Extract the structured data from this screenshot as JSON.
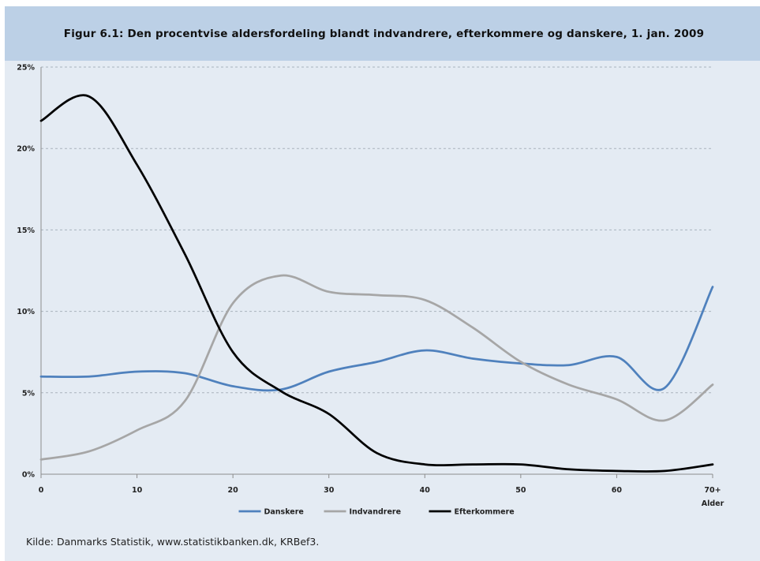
{
  "title": "Figur 6.1: Den procentvise aldersfordeling blandt indvandrere, efterkommere og danskere, 1. jan. 2009",
  "source": "Kilde: Danmarks Statistik, www.statistikbanken.dk, KRBef3.",
  "chart_data": {
    "type": "line",
    "title": "Figur 6.1: Den procentvise aldersfordeling blandt indvandrere, efterkommere og danskere, 1. jan. 2009",
    "xlabel": "Alder",
    "ylabel": "",
    "xlim": [
      0,
      70
    ],
    "ylim": [
      0,
      25
    ],
    "x_ticks": [
      "0",
      "10",
      "20",
      "30",
      "40",
      "50",
      "60",
      "70+"
    ],
    "y_ticks": [
      "0%",
      "5%",
      "10%",
      "15%",
      "20%",
      "25%"
    ],
    "grid": "horizontal dashed",
    "legend_position": "bottom",
    "x": [
      0,
      5,
      10,
      15,
      20,
      25,
      30,
      35,
      40,
      45,
      50,
      55,
      60,
      65,
      70
    ],
    "series": [
      {
        "name": "Danskere",
        "color": "#4f81bd",
        "values": [
          6.0,
          6.0,
          6.3,
          6.2,
          5.4,
          5.2,
          6.3,
          6.9,
          7.6,
          7.1,
          6.8,
          6.7,
          7.2,
          5.3,
          11.5
        ]
      },
      {
        "name": "Indvandrere",
        "color": "#a6a6a6",
        "values": [
          0.9,
          1.4,
          2.7,
          4.5,
          10.5,
          12.2,
          11.2,
          11.0,
          10.7,
          9.0,
          6.9,
          5.5,
          4.6,
          3.3,
          5.5
        ]
      },
      {
        "name": "Efterkommere",
        "color": "#000000",
        "values": [
          21.7,
          23.2,
          19.0,
          13.5,
          7.5,
          5.1,
          3.7,
          1.3,
          0.6,
          0.6,
          0.6,
          0.3,
          0.2,
          0.2,
          0.6
        ]
      }
    ]
  }
}
